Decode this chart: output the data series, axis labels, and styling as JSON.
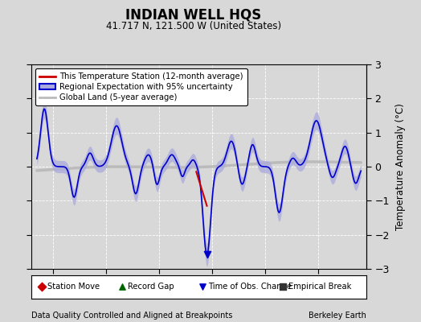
{
  "title": "INDIAN WELL HQS",
  "subtitle": "41.717 N, 121.500 W (United States)",
  "ylabel": "Temperature Anomaly (°C)",
  "xlabel_bottom_left": "Data Quality Controlled and Aligned at Breakpoints",
  "xlabel_bottom_right": "Berkeley Earth",
  "xlim": [
    1933.0,
    1964.5
  ],
  "ylim": [
    -3,
    3
  ],
  "yticks": [
    -3,
    -2,
    -1,
    0,
    1,
    2,
    3
  ],
  "xticks": [
    1935,
    1940,
    1945,
    1950,
    1955,
    1960
  ],
  "bg_color": "#d8d8d8",
  "plot_bg_color": "#d8d8d8",
  "regional_color": "#0000cc",
  "regional_fill_color": "#aaaadd",
  "global_color": "#bbbbbb",
  "station_color": "#cc0000",
  "legend_items": [
    "This Temperature Station (12-month average)",
    "Regional Expectation with 95% uncertainty",
    "Global Land (5-year average)"
  ],
  "marker_legend": [
    {
      "marker": "D",
      "color": "#cc0000",
      "label": "Station Move"
    },
    {
      "marker": "^",
      "color": "#006600",
      "label": "Record Gap"
    },
    {
      "marker": "v",
      "color": "#0000cc",
      "label": "Time of Obs. Change"
    },
    {
      "marker": "s",
      "color": "#333333",
      "label": "Empirical Break"
    }
  ]
}
